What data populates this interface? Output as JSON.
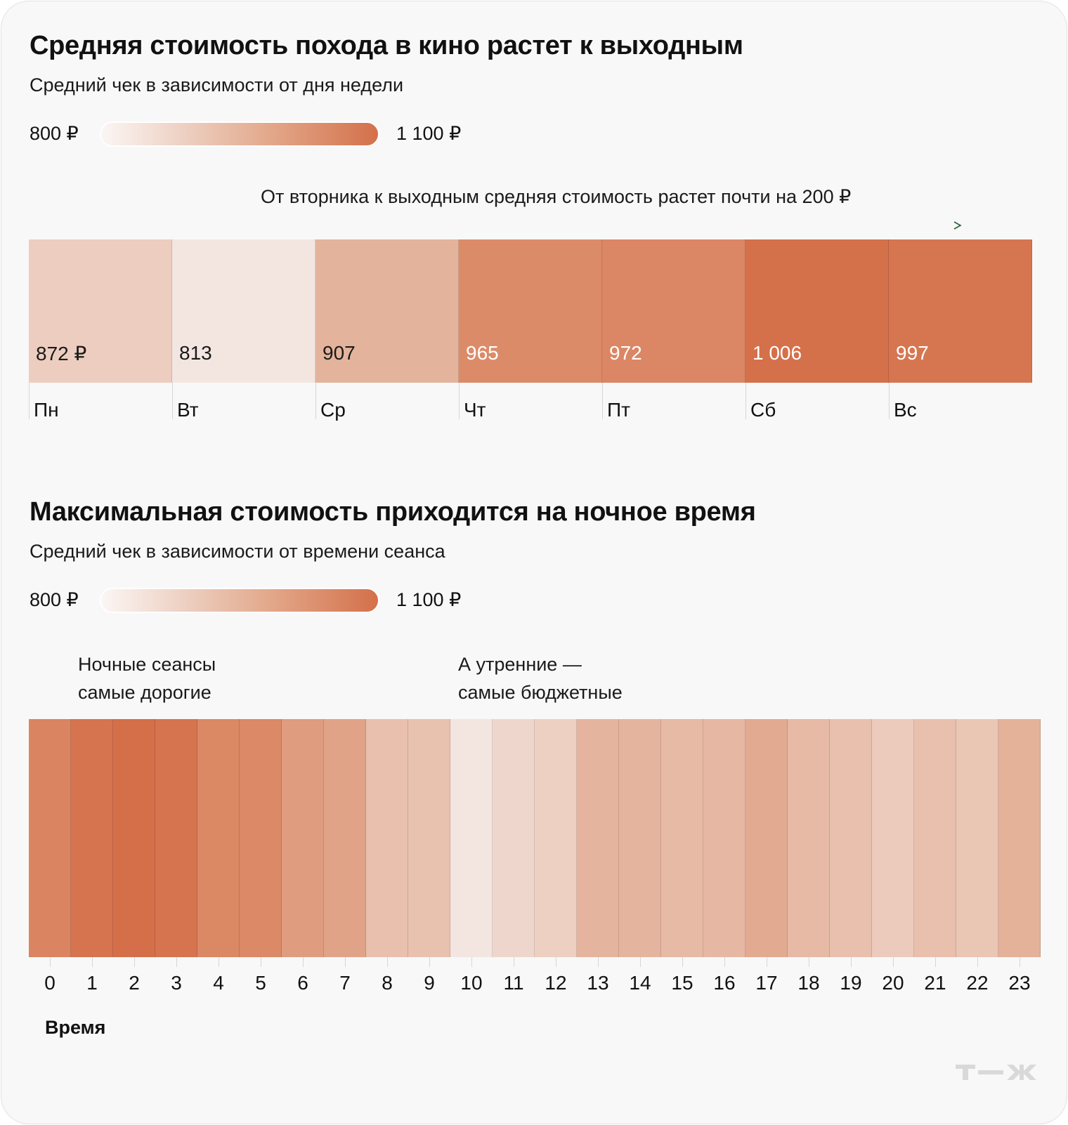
{
  "chart_data": [
    {
      "type": "heatmap",
      "title": "Средняя стоимость похода в кино растет к выходным",
      "subtitle": "Средний чек в зависимости от дня недели",
      "legend": {
        "min_label": "800 ₽",
        "max_label": "1 100 ₽",
        "min": 800,
        "max": 1100,
        "placement": "top-left"
      },
      "annotation": "От вторника к выходным средняя стоимость растет почти на 200 ₽",
      "categories": [
        "Пн",
        "Вт",
        "Ср",
        "Чт",
        "Пт",
        "Сб",
        "Вс"
      ],
      "values": [
        872,
        813,
        907,
        965,
        972,
        1006,
        997
      ],
      "value_labels": [
        "872 ₽",
        "813",
        "907",
        "965",
        "972",
        "1 006",
        "997"
      ]
    },
    {
      "type": "heatmap",
      "title": "Максимальная стоимость приходится на ночное время",
      "subtitle": "Средний чек в зависимости от времени сеанса",
      "legend": {
        "min_label": "800 ₽",
        "max_label": "1 100 ₽",
        "min": 800,
        "max": 1100,
        "placement": "top-left"
      },
      "annotations": [
        "Ночные сеансы\nсамые дорогие",
        "А утренние —\nсамые бюджетные"
      ],
      "xlabel": "Время",
      "categories": [
        "0",
        "1",
        "2",
        "3",
        "4",
        "5",
        "6",
        "7",
        "8",
        "9",
        "10",
        "11",
        "12",
        "13",
        "14",
        "15",
        "16",
        "17",
        "18",
        "19",
        "20",
        "21",
        "22",
        "23"
      ],
      "values": [
        975,
        1000,
        1010,
        1000,
        970,
        968,
        940,
        930,
        890,
        888,
        815,
        850,
        865,
        905,
        905,
        898,
        900,
        920,
        898,
        890,
        875,
        890,
        882,
        910
      ]
    }
  ],
  "colors": {
    "low": "#f6ece8",
    "high": "#d4704a",
    "arrow": "#2e5d3a",
    "logo": "#d9d9d9"
  },
  "logo": "Т—Ж"
}
